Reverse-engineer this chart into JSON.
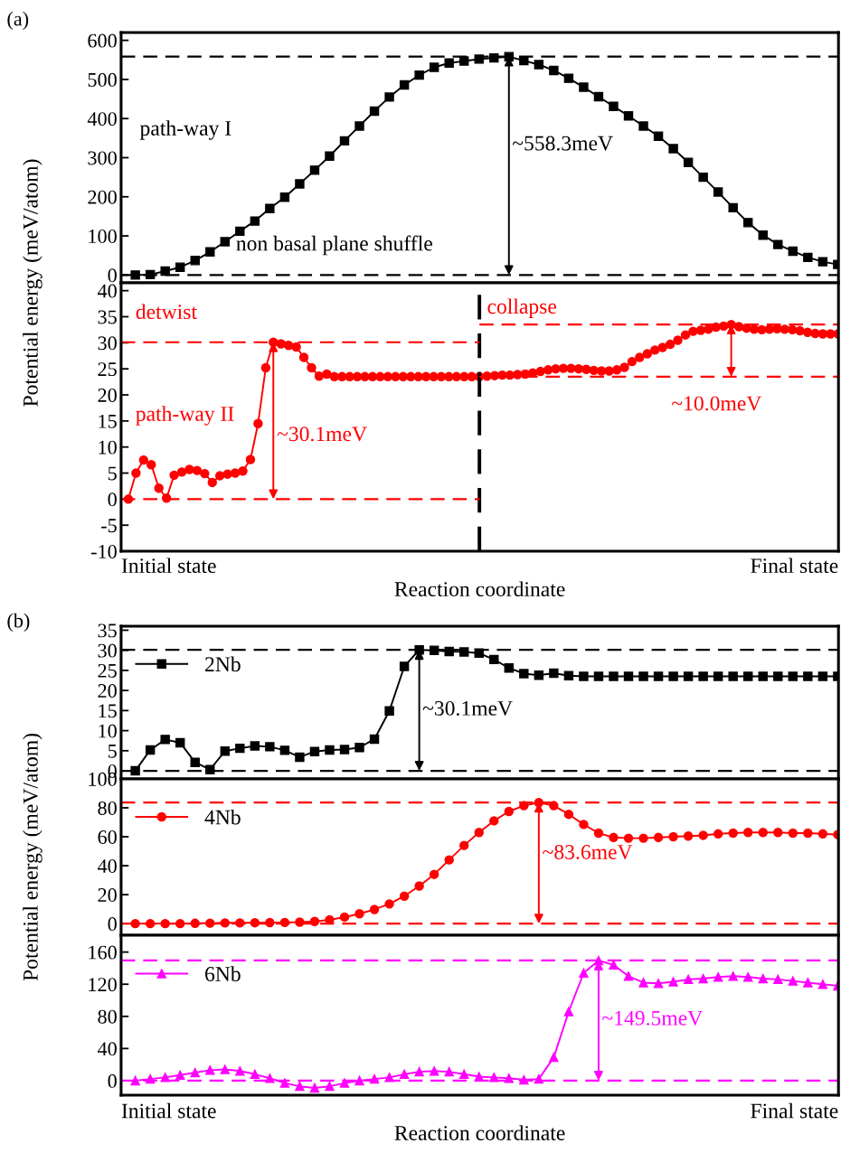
{
  "chart_data": [
    {
      "type": "line",
      "title": "(a)",
      "ylabel": "Potential energy (meV/atom)",
      "categories": [
        null,
        null,
        null,
        null,
        null,
        null,
        null,
        null,
        null,
        null,
        null,
        null,
        null,
        null,
        null,
        null,
        null,
        null,
        null,
        null,
        null,
        null,
        null,
        null,
        null,
        null,
        null,
        null,
        null,
        null,
        null,
        null,
        null,
        null,
        null,
        null,
        null,
        null,
        null,
        null,
        null,
        null,
        null,
        null,
        null,
        null,
        null,
        null
      ],
      "ylim": [
        -20,
        620
      ],
      "yticks": [
        0,
        100,
        200,
        300,
        400,
        500,
        600
      ],
      "tick_labels": "y",
      "series": [
        {
          "color": "#000000",
          "marker": "square",
          "line_style": "solid",
          "values": [
            0,
            1,
            10,
            20,
            37,
            59,
            85,
            112,
            138,
            170,
            199,
            233,
            268,
            304,
            343,
            381,
            419,
            455,
            486,
            511,
            531,
            542,
            547,
            552,
            555,
            558.3,
            548,
            538,
            523,
            503,
            480,
            456,
            431,
            407,
            381,
            355,
            323,
            288,
            250,
            212,
            172,
            134,
            102,
            78,
            61,
            45,
            34,
            27
          ]
        }
      ],
      "ref_lines": [
        {
          "axis": "y",
          "value": 0,
          "color": "#000000",
          "line_style": "dashed"
        },
        {
          "axis": "y",
          "value": 558.3,
          "color": "#000000",
          "line_style": "dashed"
        }
      ],
      "annotations": [
        "path-way I",
        "non basal plane shuffle",
        "~558.3meV"
      ]
    },
    {
      "type": "line",
      "xlabel": "Reaction coordinate",
      "categories": [
        null,
        null,
        null,
        null,
        null,
        null,
        null,
        null,
        null,
        null,
        null,
        null,
        null,
        null,
        null,
        null,
        null,
        null,
        null,
        null,
        null,
        null,
        null,
        null,
        null,
        null,
        null,
        null,
        null,
        null,
        null,
        null,
        null,
        null,
        null,
        null,
        null,
        null,
        null,
        null,
        null,
        null,
        null,
        null,
        null,
        null,
        null,
        null,
        null,
        null,
        null,
        null,
        null,
        null,
        null,
        null,
        null,
        null,
        null,
        null,
        null,
        null,
        null,
        null,
        null,
        null,
        null,
        null,
        null,
        null,
        null,
        null,
        null,
        null,
        null,
        null,
        null,
        null,
        null,
        null,
        null,
        null,
        null,
        null,
        null,
        null,
        null,
        null,
        null,
        null,
        null,
        null,
        null,
        null
      ],
      "ylim": [
        -10,
        41.5
      ],
      "yticks": [
        -10,
        -5,
        0,
        5,
        10,
        15,
        20,
        25,
        30,
        35,
        40
      ],
      "tick_labels": "y",
      "series": [
        {
          "color": "#ff0000",
          "marker": "circle",
          "line_style": "solid",
          "values": [
            0,
            5.0,
            7.5,
            6.6,
            2.1,
            0.2,
            4.6,
            5.2,
            5.7,
            5.5,
            4.9,
            3.2,
            4.5,
            4.8,
            5.0,
            5.4,
            7.6,
            14.5,
            25.2,
            30.1,
            29.8,
            29.5,
            29.2,
            27.2,
            25.2,
            23.6,
            24.0,
            23.5,
            23.5,
            23.5,
            23.5,
            23.5,
            23.5,
            23.5,
            23.5,
            23.5,
            23.5,
            23.5,
            23.5,
            23.5,
            23.5,
            23.5,
            23.5,
            23.5,
            23.5,
            23.5,
            23.5,
            23.6,
            23.7,
            23.8,
            23.8,
            23.9,
            24.0,
            24.2,
            24.5,
            24.8,
            25.0,
            25.1,
            25.1,
            25.0,
            24.9,
            24.7,
            24.6,
            24.6,
            24.8,
            25.3,
            26.4,
            27.2,
            27.9,
            28.6,
            29.1,
            29.7,
            30.5,
            31.5,
            32.2,
            32.4,
            32.6,
            33.0,
            33.2,
            33.5,
            33.1,
            32.8,
            32.6,
            32.5,
            32.6,
            32.7,
            32.6,
            32.5,
            32.3,
            32.0,
            31.8,
            31.7,
            31.7,
            31.7
          ]
        }
      ],
      "ref_lines": [
        {
          "axis": "y",
          "value": 30.1,
          "color": "#ff0000",
          "line_style": "dashed"
        },
        {
          "axis": "y",
          "value": 0,
          "color": "#ff0000",
          "line_style": "dashed"
        },
        {
          "axis": "y",
          "value": 33.5,
          "color": "#ff0000",
          "line_style": "dashed"
        },
        {
          "axis": "y",
          "value": 23.5,
          "color": "#ff0000",
          "line_style": "dashed"
        }
      ],
      "annotations": [
        "detwist",
        "path-way II",
        "collapse",
        "Initial state",
        "Final state",
        "~30.1meV",
        "~10.0meV"
      ]
    },
    {
      "type": "line",
      "title": "(b)",
      "categories": [
        null,
        null,
        null,
        null,
        null,
        null,
        null,
        null,
        null,
        null,
        null,
        null,
        null,
        null,
        null,
        null,
        null,
        null,
        null,
        null,
        null,
        null,
        null,
        null,
        null,
        null,
        null,
        null,
        null,
        null,
        null,
        null,
        null,
        null,
        null,
        null,
        null,
        null,
        null,
        null,
        null,
        null,
        null,
        null,
        null,
        null,
        null,
        null
      ],
      "ylim": [
        -2,
        36
      ],
      "yticks": [
        0,
        5,
        10,
        15,
        20,
        25,
        30,
        35
      ],
      "tick_labels": "y",
      "legend": "top left",
      "series": [
        {
          "name": "2Nb",
          "color": "#000000",
          "marker": "square",
          "line_style": "solid",
          "values": [
            0,
            5.2,
            7.8,
            7.0,
            2.1,
            0.3,
            4.9,
            5.6,
            6.2,
            6.0,
            5.1,
            3.4,
            4.8,
            5.2,
            5.3,
            5.8,
            7.9,
            14.9,
            26.0,
            30.1,
            30.0,
            29.7,
            29.6,
            29.3,
            27.7,
            25.6,
            24.2,
            23.8,
            24.3,
            23.7,
            23.5,
            23.5,
            23.5,
            23.5,
            23.5,
            23.5,
            23.5,
            23.5,
            23.5,
            23.5,
            23.5,
            23.5,
            23.5,
            23.5,
            23.5,
            23.5,
            23.5,
            23.5
          ]
        }
      ],
      "ref_lines": [
        {
          "axis": "y",
          "value": 0,
          "color": "#000000",
          "line_style": "dashed"
        },
        {
          "axis": "y",
          "value": 30.1,
          "color": "#000000",
          "line_style": "dashed"
        }
      ],
      "annotations": [
        "~30.1meV"
      ]
    },
    {
      "type": "line",
      "ylabel": "Potential energy (meV/atom)",
      "categories": [
        null,
        null,
        null,
        null,
        null,
        null,
        null,
        null,
        null,
        null,
        null,
        null,
        null,
        null,
        null,
        null,
        null,
        null,
        null,
        null,
        null,
        null,
        null,
        null,
        null,
        null,
        null,
        null,
        null,
        null,
        null,
        null,
        null,
        null,
        null,
        null,
        null,
        null,
        null,
        null,
        null,
        null,
        null,
        null,
        null,
        null,
        null,
        null
      ],
      "ylim": [
        -8,
        100
      ],
      "yticks": [
        0,
        20,
        40,
        60,
        80,
        100
      ],
      "tick_labels": "y",
      "legend": "top left",
      "series": [
        {
          "name": "4Nb",
          "color": "#ff0000",
          "marker": "circle",
          "line_style": "solid",
          "values": [
            0,
            0,
            0,
            0,
            0.2,
            0.3,
            0.5,
            0.5,
            0.6,
            0.7,
            0.8,
            1.0,
            1.5,
            2.6,
            4.5,
            6.8,
            9.8,
            13.6,
            19,
            26,
            34,
            44,
            54,
            63,
            71,
            77.5,
            81.5,
            83.6,
            81.5,
            75.5,
            68.5,
            62.5,
            59.5,
            59,
            59,
            59.5,
            60,
            60.5,
            61,
            62,
            62.5,
            63,
            63,
            63,
            62.5,
            62.5,
            62,
            61.5
          ]
        }
      ],
      "ref_lines": [
        {
          "axis": "y",
          "value": 0,
          "color": "#ff0000",
          "line_style": "dashed"
        },
        {
          "axis": "y",
          "value": 83.6,
          "color": "#ff0000",
          "line_style": "dashed"
        }
      ],
      "annotations": [
        "~83.6meV"
      ]
    },
    {
      "type": "line",
      "xlabel": "Reaction coordinate",
      "categories": [
        null,
        null,
        null,
        null,
        null,
        null,
        null,
        null,
        null,
        null,
        null,
        null,
        null,
        null,
        null,
        null,
        null,
        null,
        null,
        null,
        null,
        null,
        null,
        null,
        null,
        null,
        null,
        null,
        null,
        null,
        null,
        null,
        null,
        null,
        null,
        null,
        null,
        null,
        null,
        null,
        null,
        null,
        null,
        null,
        null,
        null,
        null,
        null
      ],
      "ylim": [
        -18,
        181
      ],
      "yticks": [
        0,
        40,
        80,
        120,
        160
      ],
      "tick_labels": "y",
      "legend": "top left",
      "series": [
        {
          "name": "6Nb",
          "color": "#ff00ff",
          "marker": "triangle",
          "line_style": "solid",
          "values": [
            0,
            2,
            4,
            7,
            10,
            13,
            14,
            12,
            8,
            3,
            -3,
            -7,
            -9,
            -7,
            -3,
            0,
            2,
            4,
            8,
            11,
            12,
            11,
            8,
            5,
            4,
            3,
            1,
            2,
            29,
            86,
            134,
            149.5,
            144,
            130,
            122,
            121,
            123,
            126,
            127,
            129,
            130,
            129,
            127,
            126,
            124,
            122,
            120,
            118
          ]
        }
      ],
      "ref_lines": [
        {
          "axis": "y",
          "value": 0,
          "color": "#ff00ff",
          "line_style": "dashed"
        },
        {
          "axis": "y",
          "value": 149.5,
          "color": "#ff00ff",
          "line_style": "dashed"
        }
      ],
      "annotations": [
        "Initial state",
        "Final state",
        "~149.5meV"
      ]
    }
  ]
}
